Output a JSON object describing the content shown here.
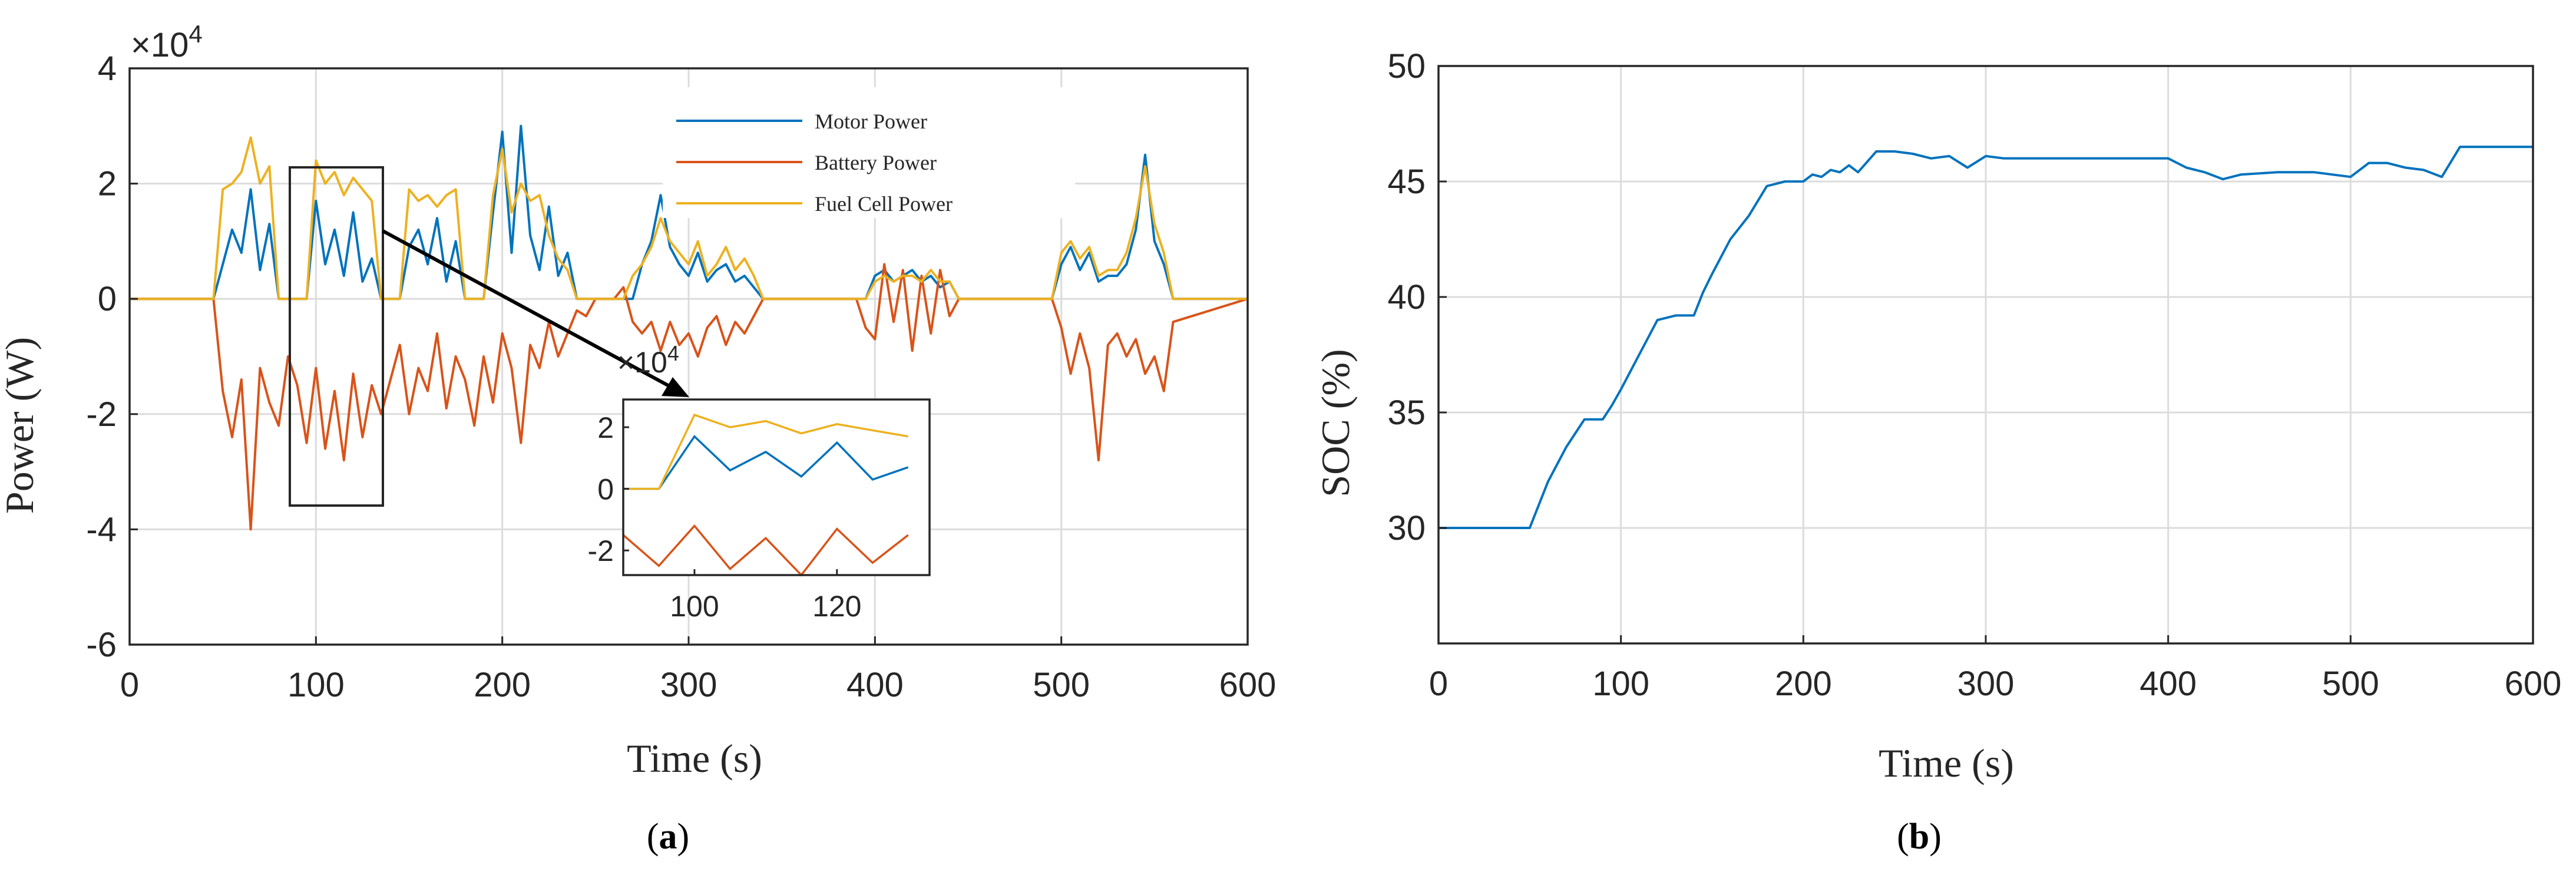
{
  "panels": {
    "a_label_open": "(",
    "a_label_letter": "a",
    "a_label_close": ")",
    "b_label_open": "(",
    "b_label_letter": "b",
    "b_label_close": ")"
  },
  "chart_data": [
    {
      "type": "line",
      "xlabel": "Time (s)",
      "ylabel": "Power (W)",
      "y_exponent_label": "×10",
      "y_exponent": "4",
      "xlim": [
        0,
        600
      ],
      "ylim": [
        -6,
        4
      ],
      "xticks": [
        0,
        100,
        200,
        300,
        400,
        500,
        600
      ],
      "yticks": [
        -6,
        -4,
        -2,
        0,
        2,
        4
      ],
      "xtick_labels": [
        "0",
        "100",
        "200",
        "300",
        "400",
        "500",
        "600"
      ],
      "ytick_labels": [
        "-6",
        "-4",
        "-2",
        "0",
        "2",
        "4"
      ],
      "grid": true,
      "legend_position": "top-right",
      "colors": {
        "motor": "#0072bd",
        "battery": "#d95319",
        "fuel": "#edb120",
        "frame": "#262626"
      },
      "series": [
        {
          "name": "Motor Power",
          "x": [
            0,
            45,
            50,
            55,
            60,
            65,
            70,
            75,
            80,
            85,
            90,
            95,
            100,
            105,
            110,
            115,
            120,
            125,
            130,
            135,
            140,
            145,
            150,
            155,
            160,
            165,
            170,
            175,
            180,
            185,
            190,
            195,
            200,
            205,
            210,
            215,
            220,
            225,
            230,
            235,
            240,
            245,
            250,
            255,
            260,
            265,
            270,
            275,
            280,
            285,
            290,
            295,
            300,
            305,
            310,
            315,
            320,
            325,
            330,
            335,
            340,
            345,
            390,
            395,
            400,
            405,
            410,
            415,
            420,
            425,
            430,
            435,
            440,
            445,
            490,
            495,
            500,
            505,
            510,
            515,
            520,
            525,
            530,
            535,
            540,
            545,
            550,
            555,
            560,
            600
          ],
          "y": [
            0,
            0,
            0.6,
            1.2,
            0.8,
            1.9,
            0.5,
            1.3,
            0,
            0,
            0,
            0,
            1.7,
            0.6,
            1.2,
            0.4,
            1.5,
            0.3,
            0.7,
            0,
            0,
            0,
            0.9,
            1.2,
            0.6,
            1.4,
            0.3,
            1.0,
            0,
            0,
            0,
            1.5,
            2.9,
            0.8,
            3.0,
            1.1,
            0.5,
            1.6,
            0.4,
            0.8,
            0,
            0,
            0,
            0,
            0,
            0,
            0,
            0.6,
            1.0,
            1.8,
            0.9,
            0.6,
            0.4,
            0.8,
            0.3,
            0.5,
            0.6,
            0.3,
            0.4,
            0.2,
            0,
            0,
            0,
            0,
            0.4,
            0.5,
            0.3,
            0.4,
            0.5,
            0.3,
            0.4,
            0.2,
            0.3,
            0,
            0,
            0,
            0.6,
            0.9,
            0.5,
            0.8,
            0.3,
            0.4,
            0.4,
            0.6,
            1.2,
            2.5,
            1.0,
            0.6,
            0,
            0
          ]
        },
        {
          "name": "Battery Power",
          "x": [
            0,
            45,
            50,
            55,
            60,
            65,
            70,
            75,
            80,
            85,
            90,
            95,
            100,
            105,
            110,
            115,
            120,
            125,
            130,
            135,
            140,
            145,
            150,
            155,
            160,
            165,
            170,
            175,
            180,
            185,
            190,
            195,
            200,
            205,
            210,
            215,
            220,
            225,
            230,
            235,
            240,
            245,
            250,
            255,
            260,
            265,
            270,
            275,
            280,
            285,
            290,
            295,
            300,
            305,
            310,
            315,
            320,
            325,
            330,
            335,
            340,
            345,
            390,
            395,
            400,
            405,
            410,
            415,
            420,
            425,
            430,
            435,
            440,
            445,
            490,
            495,
            500,
            505,
            510,
            515,
            520,
            525,
            530,
            535,
            540,
            545,
            550,
            555,
            560,
            600
          ],
          "y": [
            0,
            0,
            -1.6,
            -2.4,
            -1.4,
            -4.0,
            -1.2,
            -1.8,
            -2.2,
            -1.0,
            -1.5,
            -2.5,
            -1.2,
            -2.6,
            -1.6,
            -2.8,
            -1.3,
            -2.4,
            -1.5,
            -2.0,
            -1.4,
            -0.8,
            -2.0,
            -1.2,
            -1.6,
            -0.6,
            -1.9,
            -1.0,
            -1.4,
            -2.2,
            -1.0,
            -1.8,
            -0.6,
            -1.2,
            -2.5,
            -0.8,
            -1.2,
            -0.4,
            -1.0,
            -0.6,
            -0.2,
            -0.3,
            0,
            0,
            0,
            0.2,
            -0.4,
            -0.6,
            -0.4,
            -0.9,
            -0.4,
            -0.8,
            -0.6,
            -1.0,
            -0.5,
            -0.3,
            -0.8,
            -0.4,
            -0.6,
            -0.3,
            0,
            0,
            0,
            -0.5,
            -0.7,
            0.6,
            -0.4,
            0.5,
            -0.9,
            0.4,
            -0.6,
            0.5,
            -0.3,
            0,
            0,
            0,
            -0.5,
            -1.3,
            -0.6,
            -1.2,
            -2.8,
            -0.8,
            -0.6,
            -1.0,
            -0.7,
            -1.3,
            -1.0,
            -1.6,
            -0.4,
            0
          ]
        },
        {
          "name": "Fuel Cell Power",
          "x": [
            0,
            45,
            50,
            55,
            60,
            65,
            70,
            75,
            80,
            85,
            90,
            95,
            100,
            105,
            110,
            115,
            120,
            125,
            130,
            135,
            140,
            145,
            150,
            155,
            160,
            165,
            170,
            175,
            180,
            185,
            190,
            195,
            200,
            205,
            210,
            215,
            220,
            225,
            230,
            235,
            240,
            245,
            250,
            255,
            260,
            265,
            270,
            275,
            280,
            285,
            290,
            295,
            300,
            305,
            310,
            315,
            320,
            325,
            330,
            335,
            340,
            345,
            390,
            395,
            400,
            405,
            410,
            415,
            420,
            425,
            430,
            435,
            440,
            445,
            490,
            495,
            500,
            505,
            510,
            515,
            520,
            525,
            530,
            535,
            540,
            545,
            550,
            555,
            560,
            600
          ],
          "y": [
            0,
            0,
            1.9,
            2.0,
            2.2,
            2.8,
            2.0,
            2.3,
            0,
            0,
            0,
            0,
            2.4,
            2.0,
            2.2,
            1.8,
            2.1,
            1.9,
            1.7,
            0,
            0,
            0,
            1.9,
            1.7,
            1.8,
            1.6,
            1.8,
            1.9,
            0,
            0,
            0,
            1.8,
            2.6,
            1.5,
            2.0,
            1.7,
            1.8,
            1.1,
            0.7,
            0.5,
            0,
            0,
            0,
            0,
            0,
            0,
            0.4,
            0.6,
            0.9,
            1.4,
            1.0,
            0.8,
            0.6,
            1.0,
            0.4,
            0.6,
            0.9,
            0.5,
            0.7,
            0.4,
            0,
            0,
            0,
            0,
            0.3,
            0.4,
            0.3,
            0.4,
            0.4,
            0.3,
            0.5,
            0.3,
            0.3,
            0,
            0,
            0,
            0.8,
            1.0,
            0.7,
            0.9,
            0.4,
            0.5,
            0.5,
            0.8,
            1.4,
            2.3,
            1.3,
            0.8,
            0,
            0
          ]
        }
      ],
      "inset": {
        "xlim": [
          90,
          133
        ],
        "ylim": [
          -2.8,
          2.9
        ],
        "xticks": [
          100,
          120
        ],
        "yticks": [
          -2,
          0,
          2
        ],
        "xtick_labels": [
          "100",
          "120"
        ],
        "ytick_labels": [
          "-2",
          "0",
          "2"
        ],
        "y_exponent_label": "×10",
        "y_exponent": "4"
      }
    },
    {
      "type": "line",
      "xlabel": "Time (s)",
      "ylabel": "SOC (%)",
      "xlim": [
        0,
        600
      ],
      "ylim": [
        25,
        50
      ],
      "xticks": [
        0,
        100,
        200,
        300,
        400,
        500,
        600
      ],
      "yticks": [
        25,
        30,
        35,
        40,
        45,
        50
      ],
      "xtick_labels": [
        "0",
        "100",
        "200",
        "300",
        "400",
        "500",
        "600"
      ],
      "ytick_labels": [
        "",
        "30",
        "35",
        "40",
        "45",
        "50"
      ],
      "grid": true,
      "colors": {
        "line": "#0072bd",
        "frame": "#262626"
      },
      "series": [
        {
          "x": [
            0,
            50,
            55,
            60,
            70,
            80,
            90,
            95,
            100,
            110,
            120,
            130,
            140,
            145,
            150,
            160,
            170,
            180,
            190,
            200,
            205,
            210,
            215,
            220,
            225,
            230,
            240,
            250,
            260,
            270,
            280,
            290,
            300,
            310,
            320,
            330,
            340,
            360,
            380,
            400,
            410,
            420,
            430,
            440,
            460,
            480,
            500,
            510,
            520,
            530,
            540,
            550,
            560,
            600
          ],
          "y": [
            30,
            30,
            31,
            32,
            33.5,
            34.7,
            34.7,
            35.3,
            36,
            37.5,
            39,
            39.2,
            39.2,
            40.2,
            41,
            42.5,
            43.5,
            44.8,
            45,
            45,
            45.3,
            45.2,
            45.5,
            45.4,
            45.7,
            45.4,
            46.3,
            46.3,
            46.2,
            46.0,
            46.1,
            45.6,
            46.1,
            46.0,
            46.0,
            46.0,
            46.0,
            46.0,
            46.0,
            46.0,
            45.6,
            45.4,
            45.1,
            45.3,
            45.4,
            45.4,
            45.2,
            45.8,
            45.8,
            45.6,
            45.5,
            45.2,
            46.5,
            46.5
          ]
        }
      ]
    }
  ]
}
